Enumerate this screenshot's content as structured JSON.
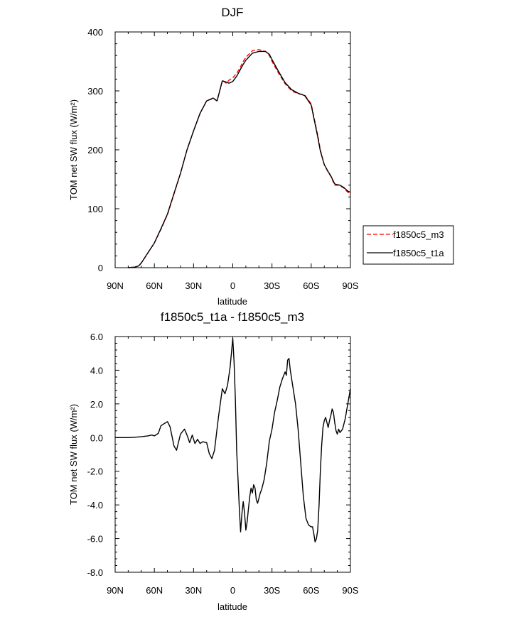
{
  "chart_data": [
    {
      "type": "line",
      "title": "DJF",
      "xlabel": "latitude",
      "ylabel": "TOM net SW flux (W/m²)",
      "xlim": [
        90,
        -90
      ],
      "ylim": [
        0,
        400
      ],
      "x_ticks": [
        {
          "value": 90,
          "label": "90N"
        },
        {
          "value": 60,
          "label": "60N"
        },
        {
          "value": 30,
          "label": "30N"
        },
        {
          "value": 0,
          "label": "0"
        },
        {
          "value": -30,
          "label": "30S"
        },
        {
          "value": -60,
          "label": "60S"
        },
        {
          "value": -90,
          "label": "90S"
        }
      ],
      "y_ticks": [
        {
          "value": 0,
          "label": "0"
        },
        {
          "value": 100,
          "label": "100"
        },
        {
          "value": 200,
          "label": "200"
        },
        {
          "value": 300,
          "label": "300"
        },
        {
          "value": 400,
          "label": "400"
        }
      ],
      "legend": {
        "placement": "right"
      },
      "series": [
        {
          "name": "f1850c5_m3",
          "color": "#ff0000",
          "dash": "dashed",
          "x": [
            80,
            75,
            72,
            70,
            65,
            60,
            55,
            50,
            45,
            40,
            35,
            30,
            25,
            20,
            15,
            12,
            10,
            8,
            5,
            3,
            0,
            -3,
            -5,
            -8,
            -10,
            -15,
            -20,
            -25,
            -28,
            -30,
            -35,
            -40,
            -45,
            -50,
            -55,
            -60,
            -65,
            -67,
            -70,
            -73,
            -75,
            -78,
            -80,
            -82,
            -85,
            -88,
            -90
          ],
          "y": [
            0,
            1,
            3,
            8,
            25,
            42,
            65,
            90,
            125,
            160,
            200,
            232,
            262,
            283,
            287,
            283,
            300,
            318,
            313,
            318,
            322,
            330,
            337,
            350,
            357,
            368,
            370,
            367,
            360,
            350,
            330,
            312,
            300,
            295,
            293,
            278,
            225,
            200,
            175,
            162,
            155,
            140,
            140,
            139,
            135,
            128,
            127
          ]
        },
        {
          "name": "f1850c5_t1a",
          "color": "#000000",
          "dash": "solid",
          "x": [
            80,
            75,
            72,
            70,
            65,
            60,
            55,
            50,
            45,
            40,
            35,
            30,
            25,
            20,
            15,
            12,
            10,
            8,
            5,
            3,
            0,
            -3,
            -5,
            -8,
            -10,
            -15,
            -20,
            -25,
            -28,
            -30,
            -35,
            -40,
            -45,
            -50,
            -55,
            -60,
            -65,
            -67,
            -70,
            -73,
            -75,
            -78,
            -80,
            -82,
            -85,
            -88,
            -90
          ],
          "y": [
            0,
            1,
            3,
            8,
            25,
            42,
            66,
            91,
            126,
            160,
            200,
            232,
            262,
            283,
            288,
            283,
            300,
            317,
            315,
            313,
            316,
            325,
            333,
            345,
            352,
            364,
            367,
            367,
            362,
            353,
            333,
            314,
            302,
            296,
            292,
            276,
            222,
            198,
            175,
            163,
            156,
            142,
            141,
            140,
            136,
            130,
            128
          ]
        }
      ]
    },
    {
      "type": "line",
      "title": "f1850c5_t1a - f1850c5_m3",
      "xlabel": "latitude",
      "ylabel": "TOM net SW flux (W/m²)",
      "xlim": [
        90,
        -90
      ],
      "ylim": [
        -8.0,
        6.0
      ],
      "x_ticks": [
        {
          "value": 90,
          "label": "90N"
        },
        {
          "value": 60,
          "label": "60N"
        },
        {
          "value": 30,
          "label": "30N"
        },
        {
          "value": 0,
          "label": "0"
        },
        {
          "value": -30,
          "label": "30S"
        },
        {
          "value": -60,
          "label": "60S"
        },
        {
          "value": -90,
          "label": "90S"
        }
      ],
      "y_ticks": [
        {
          "value": -8.0,
          "label": "-8.0"
        },
        {
          "value": -6.0,
          "label": "-6.0"
        },
        {
          "value": -4.0,
          "label": "-4.0"
        },
        {
          "value": -2.0,
          "label": "-2.0"
        },
        {
          "value": 0.0,
          "label": "0.0"
        },
        {
          "value": 2.0,
          "label": "2.0"
        },
        {
          "value": 4.0,
          "label": "4.0"
        },
        {
          "value": 6.0,
          "label": "6.0"
        }
      ],
      "series": [
        {
          "name": "",
          "color": "#000000",
          "dash": "solid",
          "x": [
            90,
            80,
            75,
            70,
            65,
            62,
            60,
            57,
            55,
            53,
            50,
            48,
            45,
            43,
            40,
            37,
            35,
            33,
            31,
            29,
            27,
            25,
            23,
            20,
            18,
            16,
            14,
            11,
            8,
            6,
            4,
            2,
            0,
            -1,
            -2,
            -3,
            -4,
            -5,
            -6,
            -7,
            -8,
            -9,
            -10,
            -11,
            -12,
            -13,
            -14,
            -15,
            -16,
            -17,
            -18,
            -19,
            -20,
            -21,
            -22,
            -24,
            -26,
            -28,
            -30,
            -32,
            -34,
            -36,
            -38,
            -40,
            -41,
            -42,
            -43,
            -44,
            -46,
            -48,
            -50,
            -52,
            -54,
            -56,
            -58,
            -60,
            -61,
            -62,
            -63,
            -64,
            -65,
            -66,
            -67,
            -68,
            -69,
            -70,
            -71,
            -72,
            -73,
            -74,
            -75,
            -76,
            -77,
            -78,
            -79,
            -80,
            -81,
            -82,
            -84,
            -86,
            -88,
            -90
          ],
          "y": [
            0.0,
            0.0,
            0.02,
            0.05,
            0.1,
            0.15,
            0.1,
            0.25,
            0.7,
            0.8,
            0.95,
            0.65,
            -0.5,
            -0.75,
            0.2,
            0.5,
            0.15,
            -0.3,
            0.15,
            -0.35,
            -0.1,
            -0.35,
            -0.25,
            -0.3,
            -0.95,
            -1.25,
            -0.75,
            1.2,
            2.9,
            2.6,
            3.1,
            4.2,
            5.9,
            4.5,
            2.2,
            -0.8,
            -2.5,
            -4.2,
            -5.6,
            -4.5,
            -3.8,
            -4.5,
            -5.5,
            -5.0,
            -4.2,
            -3.5,
            -3.0,
            -3.3,
            -2.8,
            -3.0,
            -3.7,
            -3.9,
            -3.6,
            -3.3,
            -3.1,
            -2.5,
            -1.5,
            -0.2,
            0.5,
            1.5,
            2.2,
            3.0,
            3.5,
            3.9,
            3.7,
            4.6,
            4.7,
            4.0,
            3.0,
            2.0,
            0.5,
            -1.5,
            -3.5,
            -4.8,
            -5.2,
            -5.3,
            -5.3,
            -5.7,
            -6.2,
            -6.0,
            -5.5,
            -4.0,
            -2.0,
            -0.5,
            0.6,
            1.0,
            1.2,
            0.9,
            0.6,
            1.0,
            1.3,
            1.7,
            1.5,
            0.9,
            0.4,
            0.2,
            0.5,
            0.3,
            0.5,
            1.1,
            2.0,
            2.9
          ]
        }
      ]
    }
  ]
}
